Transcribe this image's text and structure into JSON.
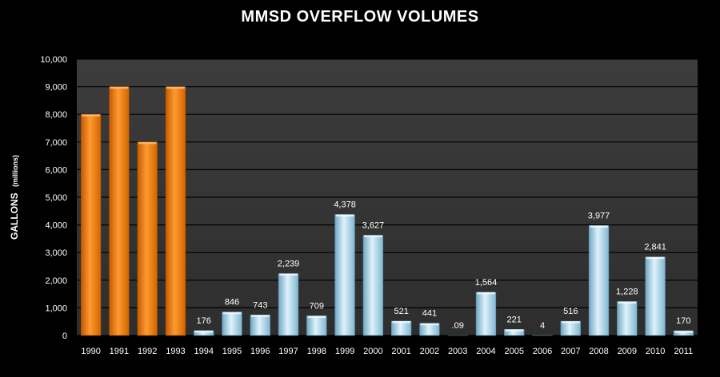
{
  "chart_data": {
    "type": "bar",
    "title": "MMSD OVERFLOW VOLUMES",
    "ylabel": "GALLONS",
    "ylabel_unit": "(millions)",
    "xlabel": "",
    "ylim": [
      0,
      10000
    ],
    "yticks": [
      "0",
      "1,000",
      "2,000",
      "3,000",
      "4,000",
      "5,000",
      "6,000",
      "7,000",
      "8,000",
      "9,000",
      "10,000"
    ],
    "grid": true,
    "categories": [
      "1990",
      "1991",
      "1992",
      "1993",
      "1994",
      "1995",
      "1996",
      "1997",
      "1998",
      "1999",
      "2000",
      "2001",
      "2002",
      "2003",
      "2004",
      "2005",
      "2006",
      "2007",
      "2008",
      "2009",
      "2010",
      "2011"
    ],
    "values": [
      8000,
      9000,
      7000,
      9000,
      176,
      846,
      743,
      2239,
      709,
      4378,
      3627,
      521,
      441,
      0.09,
      1564,
      221,
      4,
      516,
      3977,
      1228,
      2841,
      170
    ],
    "data_labels": [
      "",
      "",
      "",
      "",
      "176",
      "846",
      "743",
      "2,239",
      "709",
      "4,378",
      "3,627",
      "521",
      "441",
      ".09",
      "1,564",
      "221",
      "4",
      "516",
      "3,977",
      "1,228",
      "2,841",
      "170"
    ],
    "colors": {
      "highlight": "#f07c10",
      "normal": "#a9d6ea",
      "plot_background": "#3a3a3a",
      "gridline": "#000000"
    },
    "highlight_years": [
      "1990",
      "1991",
      "1992",
      "1993"
    ]
  }
}
